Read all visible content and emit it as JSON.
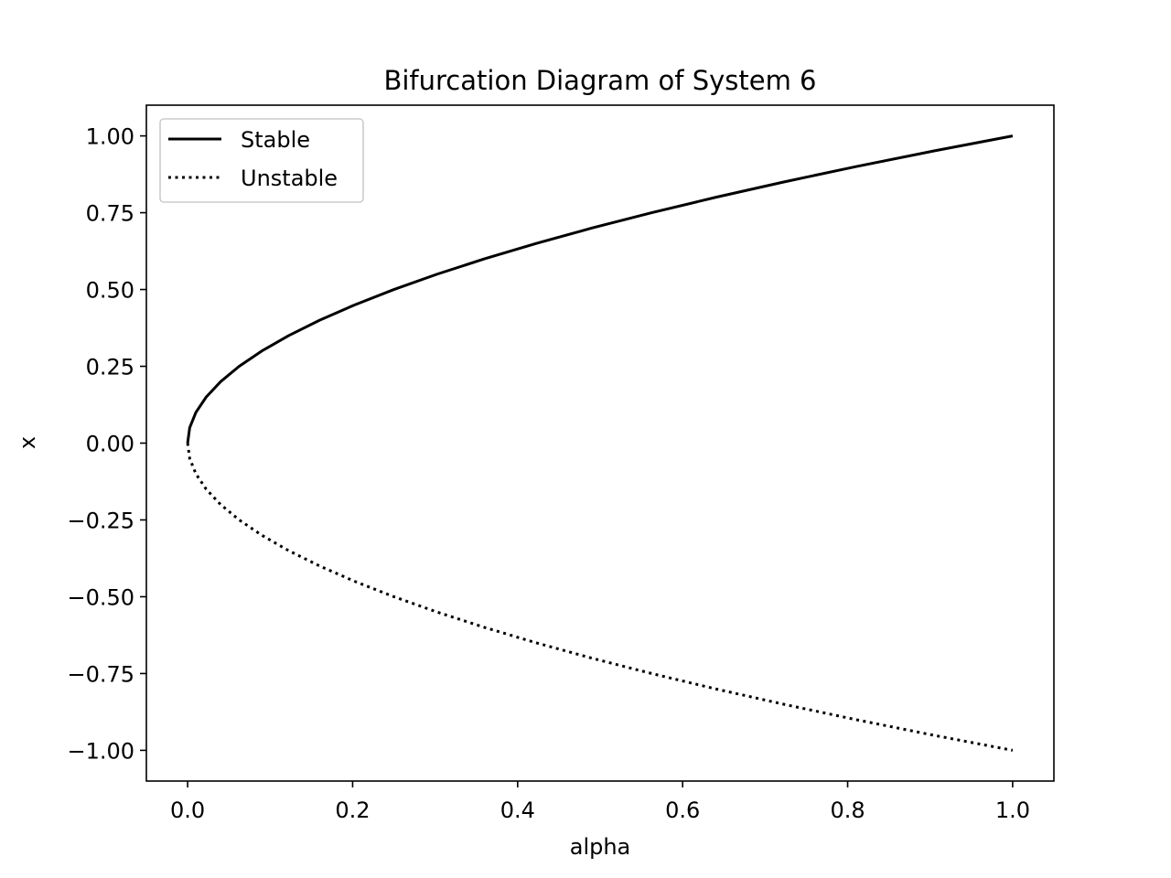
{
  "chart_data": {
    "type": "line",
    "title": "Bifurcation Diagram of System 6",
    "xlabel": "alpha",
    "ylabel": "x",
    "xlim": [
      -0.05,
      1.05
    ],
    "ylim": [
      -1.1,
      1.1
    ],
    "x_ticks": [
      0.0,
      0.2,
      0.4,
      0.6,
      0.8,
      1.0
    ],
    "x_tick_labels": [
      "0.0",
      "0.2",
      "0.4",
      "0.6",
      "0.8",
      "1.0"
    ],
    "y_ticks": [
      1.0,
      0.75,
      0.5,
      0.25,
      0.0,
      -0.25,
      -0.5,
      -0.75,
      -1.0
    ],
    "y_tick_labels": [
      "1.00",
      "0.75",
      "0.50",
      "0.25",
      "0.00",
      "−0.25",
      "−0.50",
      "−0.75",
      "−1.00"
    ],
    "grid": false,
    "legend_position": "top-left",
    "series": [
      {
        "name": "Stable",
        "style": "solid",
        "color": "#000000",
        "x": [
          0.0,
          0.0025,
          0.01,
          0.0225,
          0.04,
          0.0625,
          0.09,
          0.1225,
          0.16,
          0.2025,
          0.25,
          0.3025,
          0.36,
          0.4225,
          0.49,
          0.5625,
          0.64,
          0.7225,
          0.81,
          0.9025,
          1.0
        ],
        "y": [
          0.0,
          0.05,
          0.1,
          0.15,
          0.2,
          0.25,
          0.3,
          0.35,
          0.4,
          0.45,
          0.5,
          0.55,
          0.6,
          0.65,
          0.7,
          0.75,
          0.8,
          0.85,
          0.9,
          0.95,
          1.0
        ]
      },
      {
        "name": "Unstable",
        "style": "dotted",
        "color": "#000000",
        "x": [
          0.0,
          0.0025,
          0.01,
          0.0225,
          0.04,
          0.0625,
          0.09,
          0.1225,
          0.16,
          0.2025,
          0.25,
          0.3025,
          0.36,
          0.4225,
          0.49,
          0.5625,
          0.64,
          0.7225,
          0.81,
          0.9025,
          1.0
        ],
        "y": [
          0.0,
          -0.05,
          -0.1,
          -0.15,
          -0.2,
          -0.25,
          -0.3,
          -0.35,
          -0.4,
          -0.45,
          -0.5,
          -0.55,
          -0.6,
          -0.65,
          -0.7,
          -0.75,
          -0.8,
          -0.85,
          -0.9,
          -0.95,
          -1.0
        ]
      }
    ]
  }
}
